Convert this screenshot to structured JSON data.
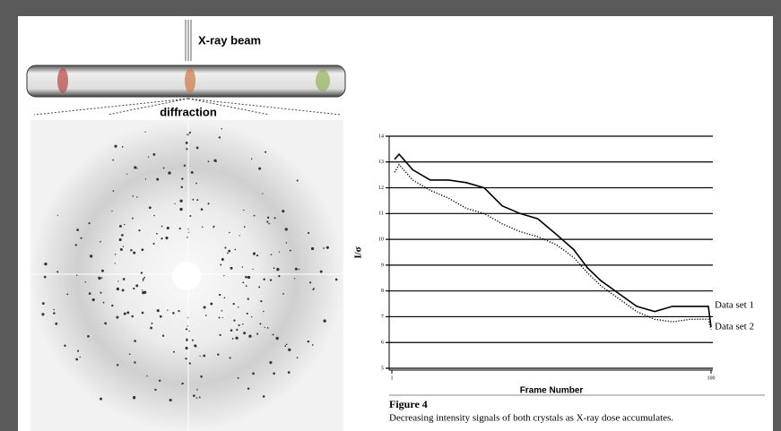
{
  "illustration": {
    "beam_label": "X-ray beam",
    "diffraction_label": "diffraction"
  },
  "chart_data": {
    "type": "line",
    "y_label": "I/σ",
    "x_label": "Frame Number",
    "x_log": true,
    "xlim": [
      1,
      100
    ],
    "xticks": [
      1,
      100
    ],
    "ylim": [
      5,
      14
    ],
    "yticks": [
      5,
      6,
      7,
      8,
      9,
      10,
      11,
      12,
      13,
      14
    ],
    "grid": true,
    "x": [
      1.04,
      1.11,
      1.35,
      1.74,
      2.26,
      2.93,
      3.79,
      4.91,
      6.36,
      8.2,
      10.7,
      13.8,
      16.8,
      20.4,
      26.4,
      34.2,
      44.3,
      57.3,
      74.3,
      96.2,
      100
    ],
    "series": [
      {
        "name": "Data set 1",
        "color": "#000000",
        "line_style": "solid",
        "values": [
          13.1,
          13.3,
          12.7,
          12.3,
          12.3,
          12.2,
          12.0,
          11.3,
          11.0,
          10.8,
          10.2,
          9.6,
          8.9,
          8.4,
          7.9,
          7.4,
          7.2,
          7.4,
          7.4,
          7.4,
          6.6
        ]
      },
      {
        "name": "Data set 2",
        "color": "#000000",
        "line_style": "dotted",
        "values": [
          12.6,
          12.9,
          12.3,
          11.9,
          11.6,
          11.2,
          11.0,
          10.6,
          10.3,
          10.1,
          9.8,
          9.3,
          8.7,
          8.2,
          7.7,
          7.2,
          6.9,
          6.8,
          6.9,
          6.9,
          6.5
        ]
      }
    ]
  },
  "figure": {
    "label": "Figure 4",
    "caption": "Decreasing intensity signals of both crystals as X-ray dose accumulates."
  }
}
